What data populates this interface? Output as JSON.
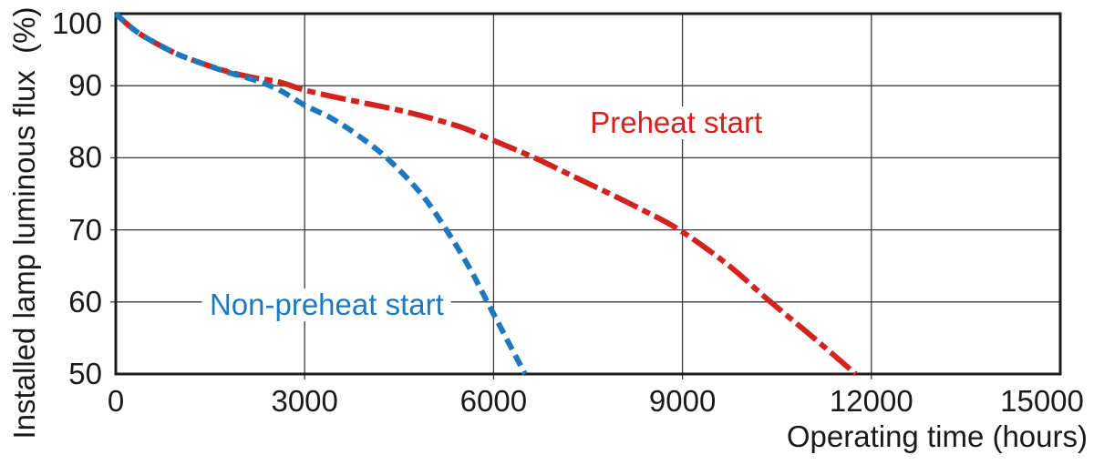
{
  "figure": {
    "background": "#ffffff",
    "text_color": "#1a1a1a",
    "grid_color": "#3c3c3c",
    "border_color": "#1d1d1d"
  },
  "chart_data": {
    "type": "line",
    "title": "",
    "xlabel": "Operating time (hours)",
    "ylabel": "Installed lamp luminous flux  (%)",
    "xlim": [
      0,
      15000
    ],
    "ylim": [
      50,
      100
    ],
    "x_ticks": [
      0,
      3000,
      6000,
      9000,
      12000,
      15000
    ],
    "y_ticks": [
      100,
      90,
      80,
      70,
      60,
      50
    ],
    "grid": true,
    "legend_position": "inline-annotations",
    "series": [
      {
        "name": "Preheat start",
        "color": "#d2231e",
        "style": "dash-dot",
        "points": [
          [
            0,
            100
          ],
          [
            200,
            98.4
          ],
          [
            400,
            97.1
          ],
          [
            700,
            95.6
          ],
          [
            1000,
            94.3
          ],
          [
            1400,
            93.0
          ],
          [
            1800,
            91.9
          ],
          [
            2200,
            91.1
          ],
          [
            2600,
            90.5
          ],
          [
            3000,
            89.4
          ],
          [
            3500,
            88.4
          ],
          [
            4000,
            87.5
          ],
          [
            4500,
            86.6
          ],
          [
            5000,
            85.5
          ],
          [
            5500,
            84.2
          ],
          [
            6000,
            82.4
          ],
          [
            6650,
            80
          ],
          [
            7200,
            77.7
          ],
          [
            7800,
            75.2
          ],
          [
            8400,
            72.6
          ],
          [
            8950,
            70
          ],
          [
            9700,
            65.3
          ],
          [
            10400,
            60
          ],
          [
            11100,
            54.9
          ],
          [
            11750,
            50
          ]
        ]
      },
      {
        "name": "Non-preheat start",
        "color": "#1e78be",
        "style": "dashed",
        "points": [
          [
            0,
            100
          ],
          [
            200,
            98.4
          ],
          [
            400,
            97.1
          ],
          [
            700,
            95.6
          ],
          [
            1000,
            94.3
          ],
          [
            1400,
            93.0
          ],
          [
            1800,
            91.8
          ],
          [
            2200,
            90.8
          ],
          [
            2600,
            89.4
          ],
          [
            3000,
            87.3
          ],
          [
            3400,
            85.6
          ],
          [
            3800,
            83.4
          ],
          [
            4300,
            80
          ],
          [
            4850,
            75
          ],
          [
            5250,
            70
          ],
          [
            5600,
            65
          ],
          [
            5900,
            60
          ],
          [
            6200,
            55
          ],
          [
            6500,
            50
          ]
        ]
      }
    ],
    "labels": [
      {
        "text": "Preheat start",
        "x": 8900,
        "y": 84.8,
        "color": "#d2231e"
      },
      {
        "text": "Non-preheat start",
        "x": 3350,
        "y": 59.6,
        "color": "#1e78be"
      }
    ]
  }
}
